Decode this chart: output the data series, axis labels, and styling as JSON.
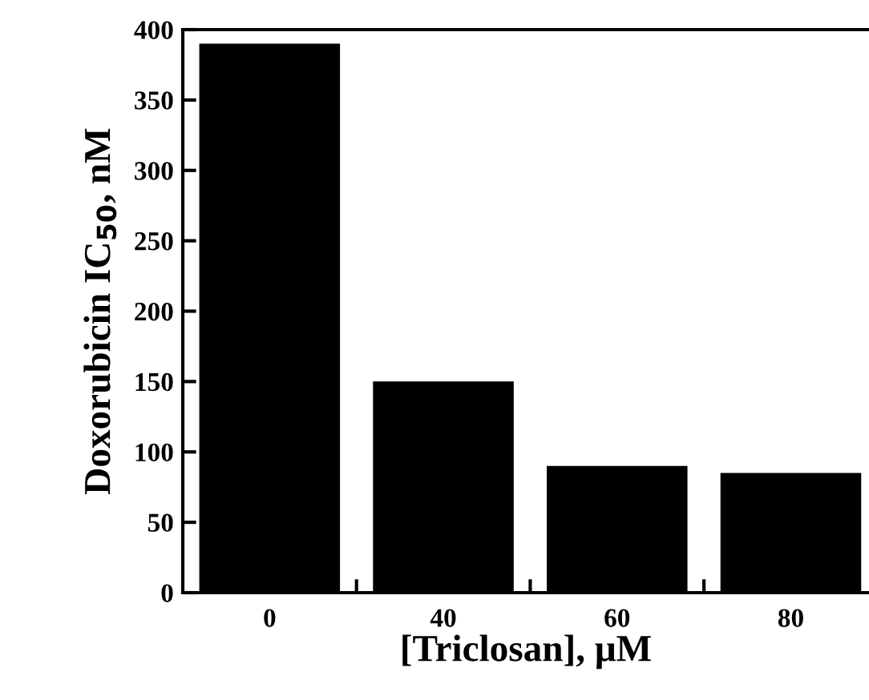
{
  "chart_data": {
    "type": "bar",
    "xlabel": "[Triclosan], μM",
    "ylabel": "Doxorubicin IC$_{50}$, nM",
    "categories": [
      "0",
      "40",
      "60",
      "80"
    ],
    "values": [
      390,
      150,
      90,
      85
    ],
    "color": "#000000",
    "ylim": [
      0,
      400
    ],
    "yticks": [
      0,
      50,
      100,
      150,
      200,
      250,
      300,
      350,
      400
    ],
    "grid": false
  }
}
